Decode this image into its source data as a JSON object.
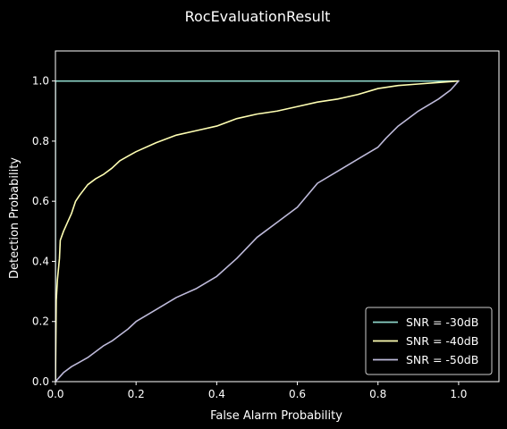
{
  "chart_data": {
    "type": "line",
    "title": "RocEvaluationResult",
    "xlabel": "False Alarm Probability",
    "ylabel": "Detection Probability",
    "xlim": [
      0,
      1.1
    ],
    "ylim": [
      0,
      1.1
    ],
    "xticks": [
      0.0,
      0.2,
      0.4,
      0.6,
      0.8,
      1.0
    ],
    "xtick_labels": [
      "0.0",
      "0.2",
      "0.4",
      "0.6",
      "0.8",
      "1.0"
    ],
    "yticks": [
      0.0,
      0.2,
      0.4,
      0.6,
      0.8,
      1.0
    ],
    "ytick_labels": [
      "0.0",
      "0.2",
      "0.4",
      "0.6",
      "0.8",
      "1.0"
    ],
    "grid": false,
    "legend_position": "lower-right",
    "series": [
      {
        "name": "SNR = -30dB",
        "color": "#8dd3c7",
        "x": [
          0.0,
          0.0,
          1.0
        ],
        "y": [
          0.0,
          1.0,
          1.0
        ]
      },
      {
        "name": "SNR = -40dB",
        "color": "#ffffb3",
        "x": [
          0.0,
          0.002,
          0.005,
          0.01,
          0.012,
          0.02,
          0.03,
          0.04,
          0.05,
          0.06,
          0.08,
          0.1,
          0.12,
          0.14,
          0.16,
          0.18,
          0.2,
          0.25,
          0.3,
          0.35,
          0.4,
          0.45,
          0.5,
          0.55,
          0.6,
          0.65,
          0.7,
          0.75,
          0.8,
          0.85,
          0.9,
          0.95,
          1.0
        ],
        "y": [
          0.0,
          0.27,
          0.34,
          0.41,
          0.47,
          0.5,
          0.53,
          0.56,
          0.6,
          0.62,
          0.655,
          0.675,
          0.69,
          0.71,
          0.735,
          0.75,
          0.765,
          0.795,
          0.82,
          0.835,
          0.85,
          0.875,
          0.89,
          0.9,
          0.915,
          0.93,
          0.94,
          0.955,
          0.975,
          0.985,
          0.99,
          0.995,
          1.0
        ]
      },
      {
        "name": "SNR = -50dB",
        "color": "#bebada",
        "x": [
          0.0,
          0.02,
          0.04,
          0.06,
          0.08,
          0.1,
          0.12,
          0.14,
          0.16,
          0.18,
          0.2,
          0.25,
          0.3,
          0.35,
          0.4,
          0.45,
          0.5,
          0.52,
          0.55,
          0.6,
          0.65,
          0.7,
          0.75,
          0.8,
          0.82,
          0.85,
          0.9,
          0.95,
          0.98,
          1.0
        ],
        "y": [
          0.0,
          0.03,
          0.05,
          0.065,
          0.08,
          0.1,
          0.12,
          0.135,
          0.155,
          0.175,
          0.2,
          0.24,
          0.28,
          0.31,
          0.35,
          0.41,
          0.48,
          0.5,
          0.53,
          0.58,
          0.66,
          0.7,
          0.74,
          0.78,
          0.81,
          0.85,
          0.9,
          0.94,
          0.97,
          1.0
        ]
      }
    ]
  }
}
